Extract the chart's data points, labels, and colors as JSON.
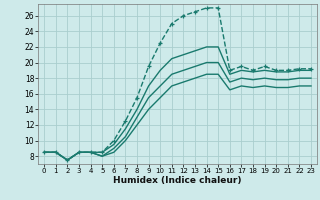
{
  "xlabel": "Humidex (Indice chaleur)",
  "background_color": "#ceeaea",
  "grid_color": "#aacece",
  "line_color": "#1a7a6e",
  "xlim": [
    -0.5,
    23.5
  ],
  "ylim": [
    7,
    27.5
  ],
  "yticks": [
    8,
    10,
    12,
    14,
    16,
    18,
    20,
    22,
    24,
    26
  ],
  "xticks": [
    0,
    1,
    2,
    3,
    4,
    5,
    6,
    7,
    8,
    9,
    10,
    11,
    12,
    13,
    14,
    15,
    16,
    17,
    18,
    19,
    20,
    21,
    22,
    23
  ],
  "series": [
    {
      "x": [
        0,
        1,
        2,
        3,
        4,
        5,
        6,
        7,
        8,
        9,
        10,
        11,
        12,
        13,
        14,
        15,
        16,
        17,
        18,
        19,
        20,
        21,
        22,
        23
      ],
      "y": [
        8.5,
        8.5,
        7.5,
        8.5,
        8.5,
        8.5,
        10.0,
        12.5,
        15.5,
        19.5,
        22.5,
        25.0,
        26.0,
        26.5,
        27.0,
        27.0,
        19.0,
        19.5,
        19.0,
        19.5,
        19.0,
        19.0,
        19.2,
        19.2
      ],
      "marker": "+",
      "linestyle": "--",
      "linewidth": 1.0
    },
    {
      "x": [
        0,
        1,
        2,
        3,
        4,
        5,
        6,
        7,
        8,
        9,
        10,
        11,
        12,
        13,
        14,
        15,
        16,
        17,
        18,
        19,
        20,
        21,
        22,
        23
      ],
      "y": [
        8.5,
        8.5,
        7.5,
        8.5,
        8.5,
        8.5,
        9.5,
        11.5,
        14.0,
        17.0,
        19.0,
        20.5,
        21.0,
        21.5,
        22.0,
        22.0,
        18.5,
        19.0,
        18.8,
        19.0,
        18.8,
        18.8,
        19.0,
        19.0
      ],
      "marker": null,
      "linestyle": "-",
      "linewidth": 1.0
    },
    {
      "x": [
        0,
        1,
        2,
        3,
        4,
        5,
        6,
        7,
        8,
        9,
        10,
        11,
        12,
        13,
        14,
        15,
        16,
        17,
        18,
        19,
        20,
        21,
        22,
        23
      ],
      "y": [
        8.5,
        8.5,
        7.5,
        8.5,
        8.5,
        8.0,
        9.0,
        10.5,
        13.0,
        15.5,
        17.0,
        18.5,
        19.0,
        19.5,
        20.0,
        20.0,
        17.5,
        18.0,
        17.8,
        18.0,
        17.8,
        17.8,
        18.0,
        18.0
      ],
      "marker": null,
      "linestyle": "-",
      "linewidth": 1.0
    },
    {
      "x": [
        0,
        1,
        2,
        3,
        4,
        5,
        6,
        7,
        8,
        9,
        10,
        11,
        12,
        13,
        14,
        15,
        16,
        17,
        18,
        19,
        20,
        21,
        22,
        23
      ],
      "y": [
        8.5,
        8.5,
        7.5,
        8.5,
        8.5,
        8.0,
        8.5,
        10.0,
        12.0,
        14.0,
        15.5,
        17.0,
        17.5,
        18.0,
        18.5,
        18.5,
        16.5,
        17.0,
        16.8,
        17.0,
        16.8,
        16.8,
        17.0,
        17.0
      ],
      "marker": null,
      "linestyle": "-",
      "linewidth": 1.0
    }
  ]
}
